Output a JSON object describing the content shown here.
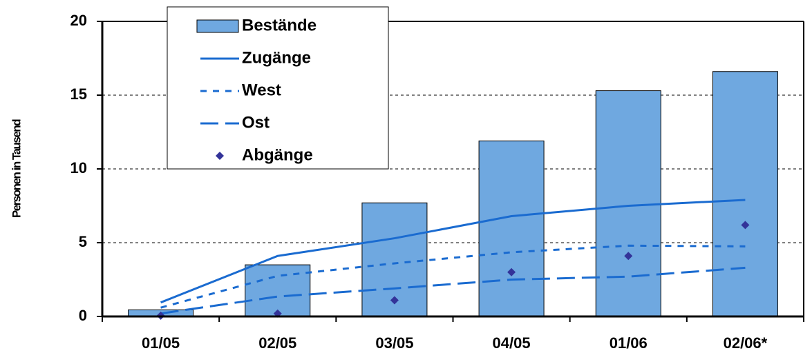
{
  "chart_data": {
    "type": "bar",
    "y_label": "Personen in Tausend",
    "categories": [
      "01/05",
      "02/05",
      "03/05",
      "04/05",
      "01/06",
      "02/06*"
    ],
    "series": [
      {
        "name": "Bestände",
        "kind": "bar",
        "color": "#6fa8e0",
        "values": [
          0.45,
          3.5,
          7.7,
          11.9,
          15.3,
          16.6
        ]
      },
      {
        "name": "Zugänge",
        "kind": "line",
        "dash": "solid",
        "color": "#1a6bd0",
        "values": [
          0.95,
          4.1,
          5.3,
          6.8,
          7.5,
          7.9
        ]
      },
      {
        "name": "West",
        "kind": "line",
        "dash": "dotted",
        "color": "#1a6bd0",
        "values": [
          0.6,
          2.75,
          3.6,
          4.35,
          4.8,
          4.75
        ]
      },
      {
        "name": "Ost",
        "kind": "line",
        "dash": "dashed",
        "color": "#1a6bd0",
        "values": [
          0.2,
          1.35,
          1.9,
          2.5,
          2.7,
          3.3
        ]
      },
      {
        "name": "Abgänge",
        "kind": "scatter",
        "color": "#333399",
        "values": [
          0.05,
          0.2,
          1.1,
          3.0,
          4.1,
          6.2
        ]
      }
    ],
    "ylim": [
      0,
      20
    ],
    "yticks": [
      0,
      5,
      10,
      15,
      20
    ],
    "grid": true,
    "legend": "top-left"
  }
}
